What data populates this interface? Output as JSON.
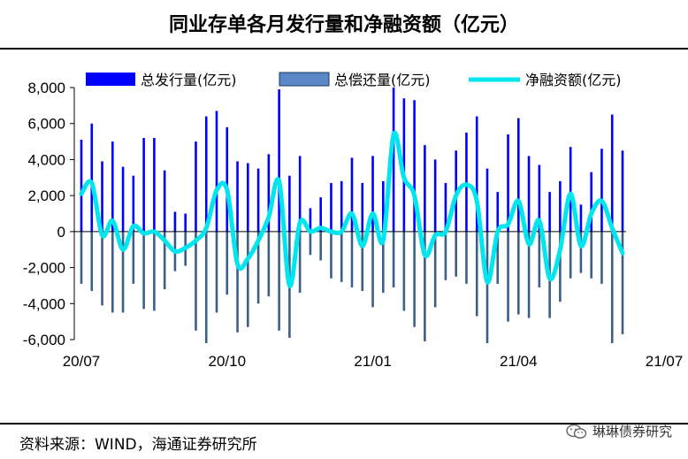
{
  "title": "同业存单各月发行量和净融资额（亿元）",
  "source": "资料来源：WIND，海通证券研究所",
  "watermark": "琳琳债券研究",
  "watermark_icon": "wechat-icon",
  "chart_data": {
    "type": "bar",
    "title": "同业存单各月发行量和净融资额（亿元）",
    "ylim": [
      -6000,
      8000
    ],
    "yticks": [
      8000,
      6000,
      4000,
      2000,
      0,
      -2000,
      -4000,
      -6000
    ],
    "ytick_labels": [
      "8,000",
      "6,000",
      "4,000",
      "2,000",
      "0",
      "-2,000",
      "-4,000",
      "-6,000"
    ],
    "xtick_labels": [
      {
        "index": 0,
        "label": "20/07"
      },
      {
        "index": 14,
        "label": "20/10"
      },
      {
        "index": 28,
        "label": "21/01"
      },
      {
        "index": 42,
        "label": "21/04"
      },
      {
        "index": 56,
        "label": "21/07"
      }
    ],
    "grid": false,
    "legend_position": "top",
    "series": [
      {
        "name": "总发行量(亿元)",
        "type": "bar",
        "color": "#0000ff",
        "values": [
          5100,
          6000,
          3900,
          5000,
          3600,
          3100,
          5200,
          5200,
          3400,
          1100,
          1000,
          5000,
          6400,
          6700,
          5800,
          3900,
          3800,
          3500,
          4300,
          7900,
          3100,
          4200,
          1300,
          1900,
          2700,
          2800,
          4100,
          2700,
          4200,
          2800,
          8000,
          7400,
          7300,
          4800,
          4000,
          2700,
          4500,
          5500,
          6400,
          3500,
          2200,
          5400,
          6300,
          4200,
          3700,
          2200,
          2800,
          4700,
          1500,
          3300,
          4600,
          6500,
          4500
        ]
      },
      {
        "name": "总偿还量(亿元)",
        "type": "bar",
        "color": "#3b5f8a",
        "values": [
          -2900,
          -3300,
          -4100,
          -4500,
          -4500,
          -2900,
          -4300,
          -4400,
          -3200,
          -2200,
          -1900,
          -5500,
          -6200,
          -4500,
          -3500,
          -5600,
          -5300,
          -4000,
          -3600,
          -5500,
          -5900,
          -3400,
          -1300,
          -1600,
          -2600,
          -2800,
          -3100,
          -3300,
          -4200,
          -3400,
          -3100,
          -4400,
          -5300,
          -6100,
          -4200,
          -2700,
          -2500,
          -2900,
          -4700,
          -6200,
          -2900,
          -5000,
          -4600,
          -4800,
          -3100,
          -4800,
          -3900,
          -2600,
          -2300,
          -2600,
          -2900,
          -6200,
          -5700
        ]
      },
      {
        "name": "净融资额(亿元)",
        "type": "line",
        "color": "#00e5ee",
        "values": [
          2100,
          2700,
          -200,
          600,
          -1000,
          300,
          -100,
          0,
          -500,
          -1100,
          -900,
          -500,
          200,
          2300,
          2300,
          -1800,
          -1500,
          -500,
          800,
          2800,
          -3000,
          500,
          0,
          200,
          0,
          0,
          1000,
          -800,
          1000,
          -500,
          5400,
          3000,
          2000,
          -1300,
          -200,
          0,
          2000,
          2600,
          1700,
          -2800,
          0,
          400,
          1700,
          -700,
          600,
          -2600,
          -1000,
          2100,
          -800,
          1000,
          1700,
          200,
          -1200
        ]
      }
    ]
  }
}
